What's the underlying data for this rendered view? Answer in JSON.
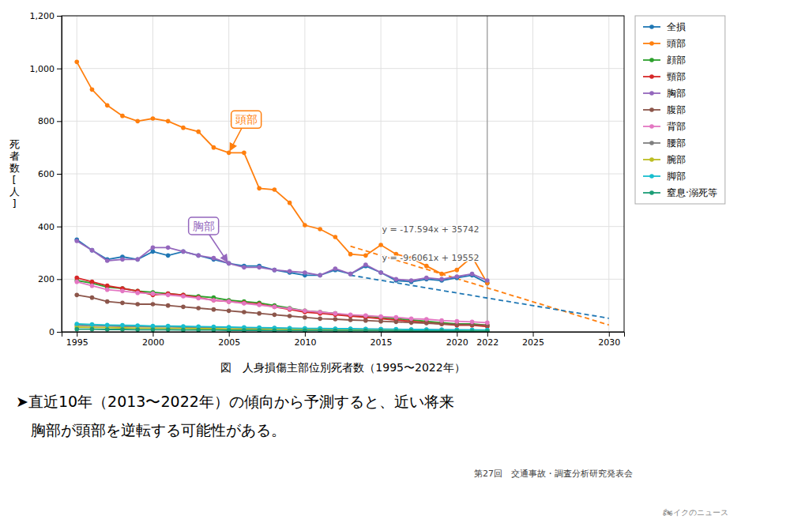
{
  "chart_data": {
    "type": "line",
    "xlabel": "図　人身損傷主部位別死者数（1995〜2022年）",
    "ylabel": "死\n者\n数\n[\n人\n]",
    "x": [
      1995,
      1996,
      1997,
      1998,
      1999,
      2000,
      2001,
      2002,
      2003,
      2004,
      2005,
      2006,
      2007,
      2008,
      2009,
      2010,
      2011,
      2012,
      2013,
      2014,
      2015,
      2016,
      2017,
      2018,
      2019,
      2020,
      2021,
      2022
    ],
    "series": [
      {
        "name": "全損",
        "values": [
          350,
          310,
          275,
          285,
          275,
          305,
          290,
          305,
          290,
          275,
          260,
          250,
          250,
          235,
          225,
          215,
          215,
          235,
          220,
          250,
          225,
          195,
          190,
          200,
          195,
          205,
          215,
          185
        ]
      },
      {
        "name": "頭部",
        "values": [
          1025,
          920,
          860,
          820,
          800,
          810,
          800,
          775,
          760,
          700,
          680,
          680,
          545,
          540,
          490,
          405,
          390,
          360,
          295,
          290,
          330,
          295,
          280,
          250,
          220,
          235,
          285,
          185
        ]
      },
      {
        "name": "顔部",
        "values": [
          195,
          185,
          170,
          165,
          155,
          150,
          145,
          140,
          135,
          130,
          120,
          115,
          110,
          100,
          90,
          80,
          75,
          70,
          60,
          60,
          55,
          50,
          45,
          40,
          35,
          30,
          30,
          25
        ]
      },
      {
        "name": "頸部",
        "values": [
          205,
          190,
          175,
          165,
          155,
          140,
          145,
          140,
          130,
          120,
          115,
          110,
          105,
          95,
          85,
          75,
          70,
          65,
          60,
          55,
          50,
          45,
          40,
          35,
          30,
          25,
          25,
          20
        ]
      },
      {
        "name": "胸部",
        "values": [
          345,
          310,
          270,
          275,
          275,
          320,
          320,
          305,
          290,
          280,
          260,
          245,
          245,
          235,
          230,
          225,
          215,
          240,
          220,
          255,
          225,
          200,
          195,
          205,
          200,
          210,
          220,
          195
        ]
      },
      {
        "name": "腹部",
        "values": [
          140,
          130,
          115,
          110,
          105,
          105,
          100,
          95,
          90,
          85,
          80,
          75,
          70,
          65,
          60,
          55,
          50,
          48,
          45,
          43,
          40,
          38,
          35,
          33,
          30,
          28,
          27,
          25
        ]
      },
      {
        "name": "背部",
        "values": [
          190,
          175,
          160,
          155,
          148,
          145,
          140,
          135,
          128,
          120,
          115,
          108,
          102,
          95,
          88,
          80,
          75,
          70,
          65,
          62,
          58,
          55,
          50,
          48,
          43,
          40,
          38,
          35
        ]
      },
      {
        "name": "腰部",
        "values": [
          25,
          23,
          22,
          21,
          20,
          19,
          19,
          18,
          17,
          17,
          16,
          15,
          15,
          14,
          13,
          12,
          12,
          11,
          11,
          10,
          10,
          9,
          9,
          8,
          8,
          7,
          7,
          6
        ]
      },
      {
        "name": "腕部",
        "values": [
          18,
          17,
          16,
          15,
          14,
          14,
          13,
          13,
          12,
          12,
          11,
          11,
          10,
          10,
          9,
          9,
          8,
          8,
          8,
          7,
          7,
          7,
          6,
          6,
          6,
          5,
          5,
          5
        ]
      },
      {
        "name": "脚部",
        "values": [
          30,
          28,
          26,
          25,
          24,
          22,
          22,
          21,
          20,
          19,
          18,
          17,
          16,
          15,
          14,
          13,
          13,
          12,
          12,
          11,
          10,
          10,
          9,
          9,
          8,
          8,
          7,
          7
        ]
      },
      {
        "name": "窒息·溺死等",
        "values": [
          10,
          10,
          9,
          9,
          8,
          8,
          8,
          7,
          7,
          7,
          6,
          6,
          6,
          5,
          5,
          5,
          5,
          4,
          4,
          4,
          4,
          3,
          3,
          3,
          3,
          3,
          2,
          2
        ]
      }
    ],
    "marker": "circle",
    "trend_lines": [
      {
        "series": "頭部",
        "label": "y = -17.594x + 35742",
        "x": [
          2013,
          2030
        ],
        "values": [
          325.278,
          26.18
        ],
        "line_style": "dashed"
      },
      {
        "series": "全損",
        "label": "y = -9.6061x + 19552",
        "x": [
          2013,
          2030
        ],
        "values": [
          214.9207,
          51.617
        ],
        "line_style": "dashed"
      }
    ],
    "annotations": [
      {
        "text": "頭部",
        "x": 2005,
        "y": 680
      },
      {
        "text": "胸部",
        "x": 2005,
        "y": 258
      }
    ],
    "vertical_line": 2022,
    "xlim": [
      1994,
      2031
    ],
    "xticks": [
      1995,
      2000,
      2005,
      2010,
      2015,
      2020,
      2022,
      2025,
      2030
    ],
    "ylim": [
      0,
      1200
    ],
    "yticks": [
      0,
      200,
      400,
      600,
      800,
      {
        "value": 1000,
        "label": "1,000"
      },
      {
        "value": 1200,
        "label": "1,200"
      }
    ],
    "grid": true,
    "legend": "right",
    "notes": [
      "➤直近10年（2013〜2022年）の傾向から予測すると、近い将来",
      "　胸部が頭部を逆転する可能性がある。"
    ],
    "footnote": "第27回　交通事故・調査分析研究発表会",
    "watermark": "🏍イクのニュース"
  }
}
